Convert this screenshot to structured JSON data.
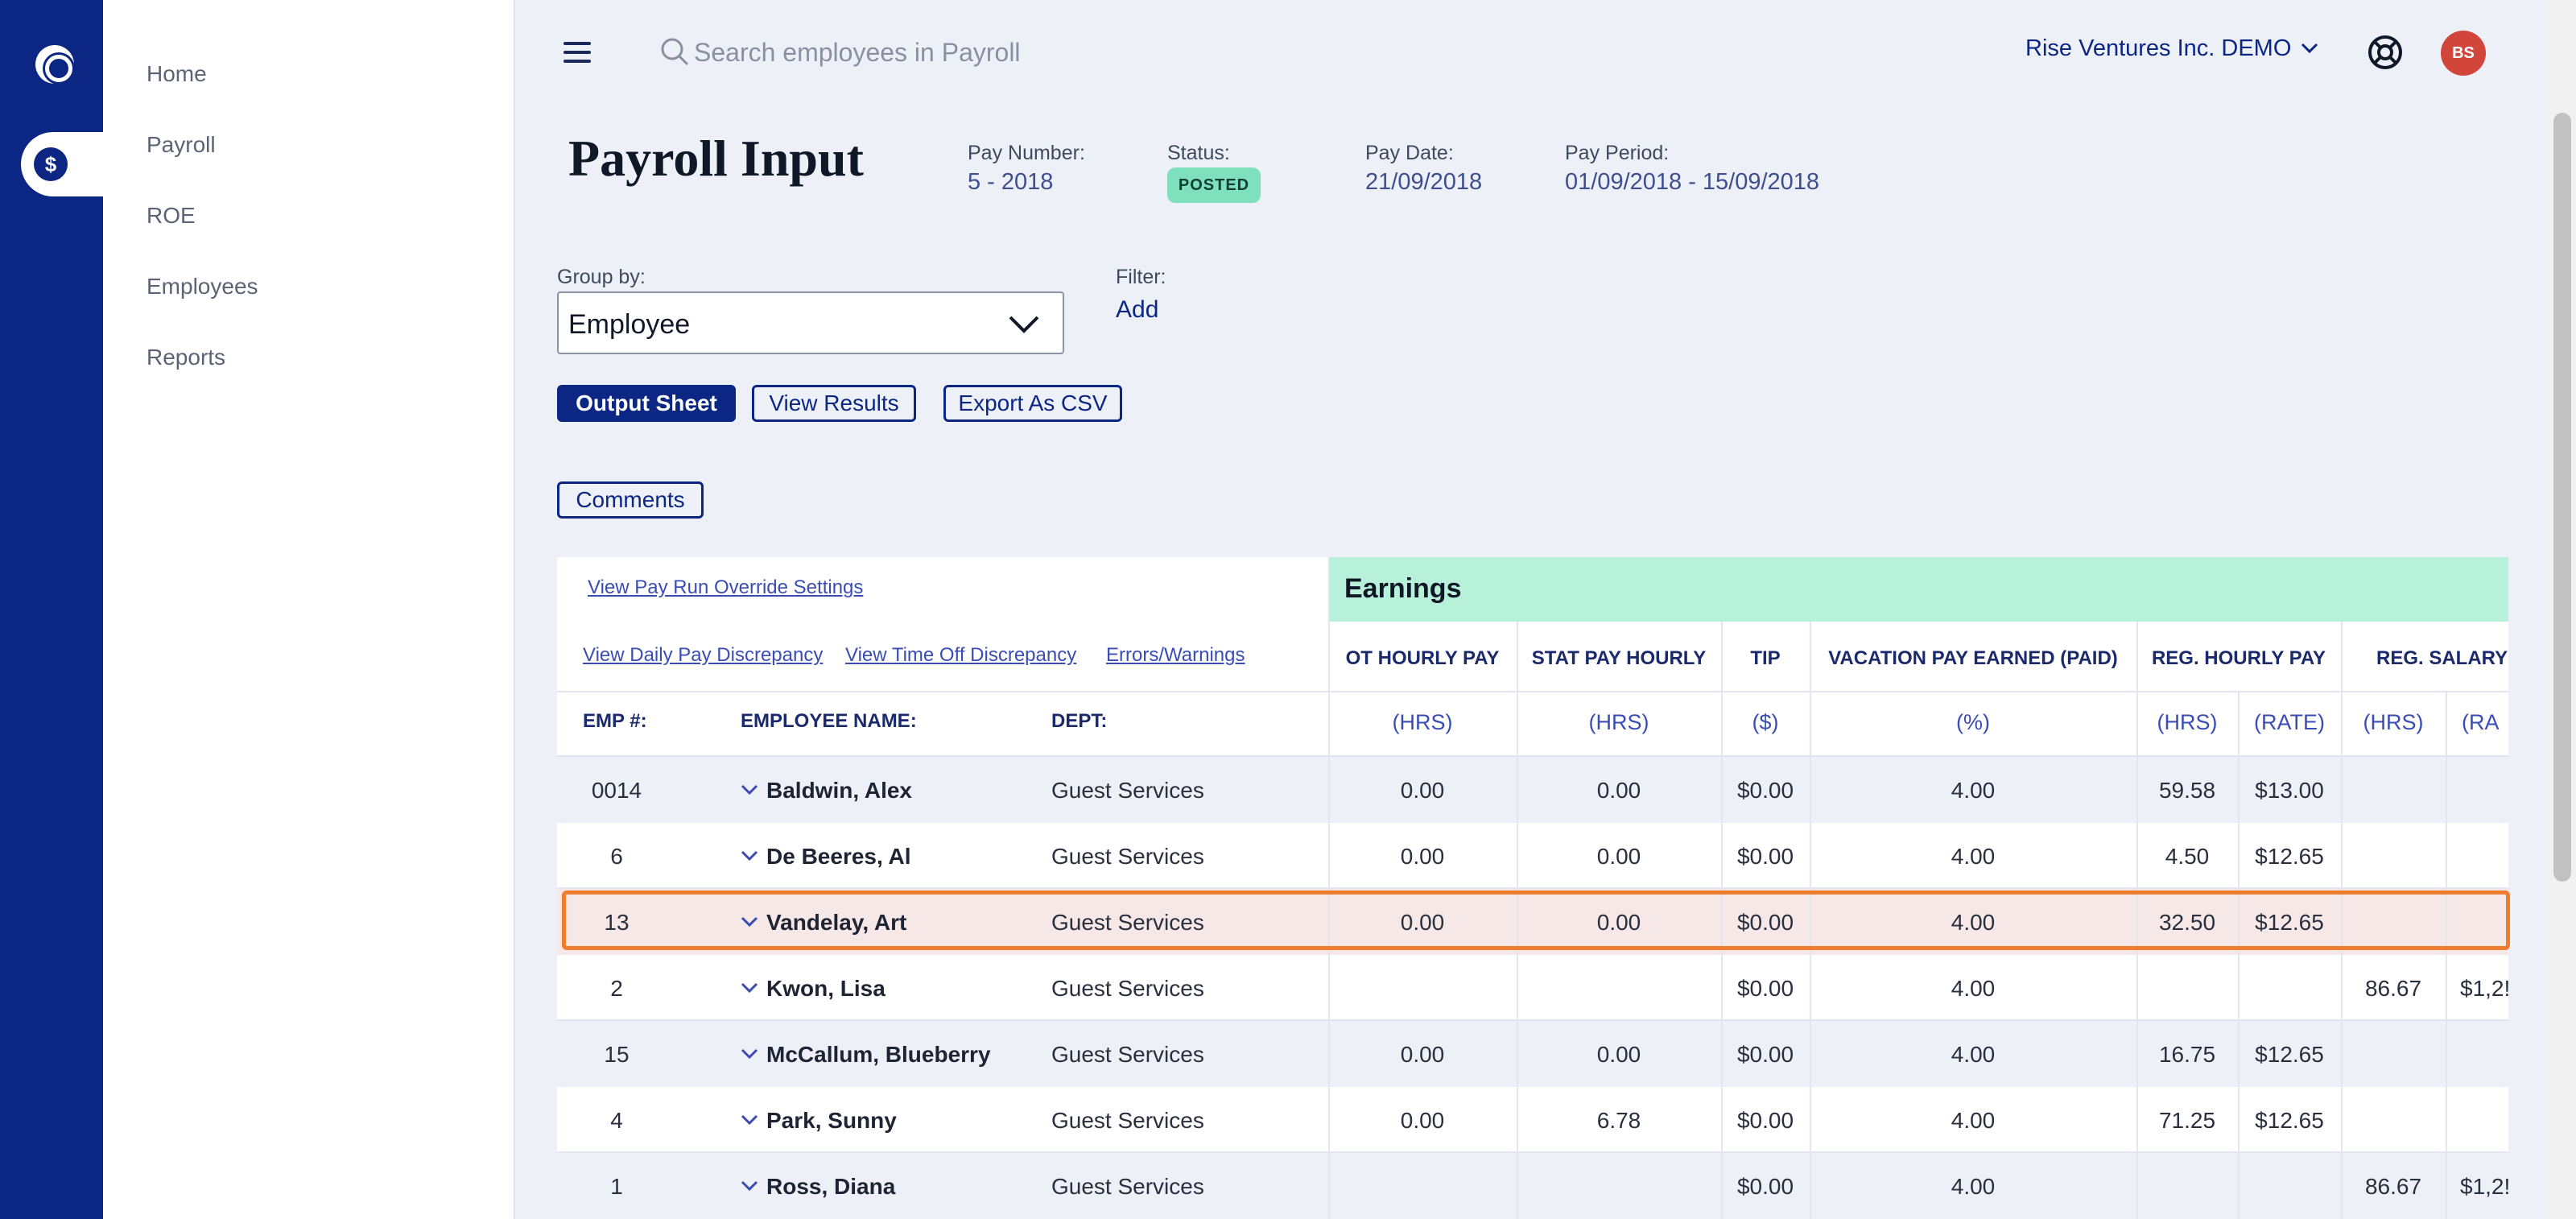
{
  "nav": {
    "items": [
      "Home",
      "Payroll",
      "ROE",
      "Employees",
      "Reports"
    ]
  },
  "topbar": {
    "search_placeholder": "Search employees in Payroll",
    "company": "Rise Ventures Inc. DEMO",
    "avatar_initials": "BS"
  },
  "header": {
    "title": "Payroll Input",
    "pay_number_label": "Pay Number:",
    "pay_number": "5 - 2018",
    "status_label": "Status:",
    "status": "POSTED",
    "pay_date_label": "Pay Date:",
    "pay_date": "21/09/2018",
    "pay_period_label": "Pay Period:",
    "pay_period": "01/09/2018 - 15/09/2018"
  },
  "controls": {
    "group_by_label": "Group by:",
    "group_by_value": "Employee",
    "filter_label": "Filter:",
    "filter_add": "Add",
    "output_sheet": "Output Sheet",
    "view_results": "View Results",
    "export_csv": "Export As CSV",
    "comments": "Comments"
  },
  "links": {
    "override": "View Pay Run Override Settings",
    "daily": "View Daily Pay Discrepancy",
    "timeoff": "View Time Off Discrepancy",
    "errors": "Errors/Warnings"
  },
  "table": {
    "section_title": "Earnings",
    "left_headers": [
      "EMP #:",
      "EMPLOYEE NAME:",
      "DEPT:"
    ],
    "columns": [
      "OT HOURLY PAY",
      "STAT PAY HOURLY",
      "TIP",
      "VACATION PAY EARNED (PAID)",
      "REG. HOURLY PAY",
      "REG. SALARY I"
    ],
    "units": [
      "(HRS)",
      "(HRS)",
      "($)",
      "(%)",
      "(HRS)",
      "(RATE)",
      "(HRS)",
      "(RA"
    ],
    "rows": [
      {
        "emp": "0014",
        "name": "Baldwin, Alex",
        "dept": "Guest Services",
        "ot": "0.00",
        "stat": "0.00",
        "tip": "$0.00",
        "vac": "4.00",
        "reg_hrs": "59.58",
        "reg_rate": "$13.00",
        "sal_hrs": "",
        "sal_rate": ""
      },
      {
        "emp": "6",
        "name": "De Beeres, Al",
        "dept": "Guest Services",
        "ot": "0.00",
        "stat": "0.00",
        "tip": "$0.00",
        "vac": "4.00",
        "reg_hrs": "4.50",
        "reg_rate": "$12.65",
        "sal_hrs": "",
        "sal_rate": ""
      },
      {
        "emp": "13",
        "name": "Vandelay, Art",
        "dept": "Guest Services",
        "ot": "0.00",
        "stat": "0.00",
        "tip": "$0.00",
        "vac": "4.00",
        "reg_hrs": "32.50",
        "reg_rate": "$12.65",
        "sal_hrs": "",
        "sal_rate": ""
      },
      {
        "emp": "2",
        "name": "Kwon, Lisa",
        "dept": "Guest Services",
        "ot": "",
        "stat": "",
        "tip": "$0.00",
        "vac": "4.00",
        "reg_hrs": "",
        "reg_rate": "",
        "sal_hrs": "86.67",
        "sal_rate": "$1,2!"
      },
      {
        "emp": "15",
        "name": "McCallum, Blueberry",
        "dept": "Guest Services",
        "ot": "0.00",
        "stat": "0.00",
        "tip": "$0.00",
        "vac": "4.00",
        "reg_hrs": "16.75",
        "reg_rate": "$12.65",
        "sal_hrs": "",
        "sal_rate": ""
      },
      {
        "emp": "4",
        "name": "Park, Sunny",
        "dept": "Guest Services",
        "ot": "0.00",
        "stat": "6.78",
        "tip": "$0.00",
        "vac": "4.00",
        "reg_hrs": "71.25",
        "reg_rate": "$12.65",
        "sal_hrs": "",
        "sal_rate": ""
      },
      {
        "emp": "1",
        "name": "Ross, Diana",
        "dept": "Guest Services",
        "ot": "",
        "stat": "",
        "tip": "$0.00",
        "vac": "4.00",
        "reg_hrs": "",
        "reg_rate": "",
        "sal_hrs": "86.67",
        "sal_rate": "$1,2!"
      }
    ]
  }
}
